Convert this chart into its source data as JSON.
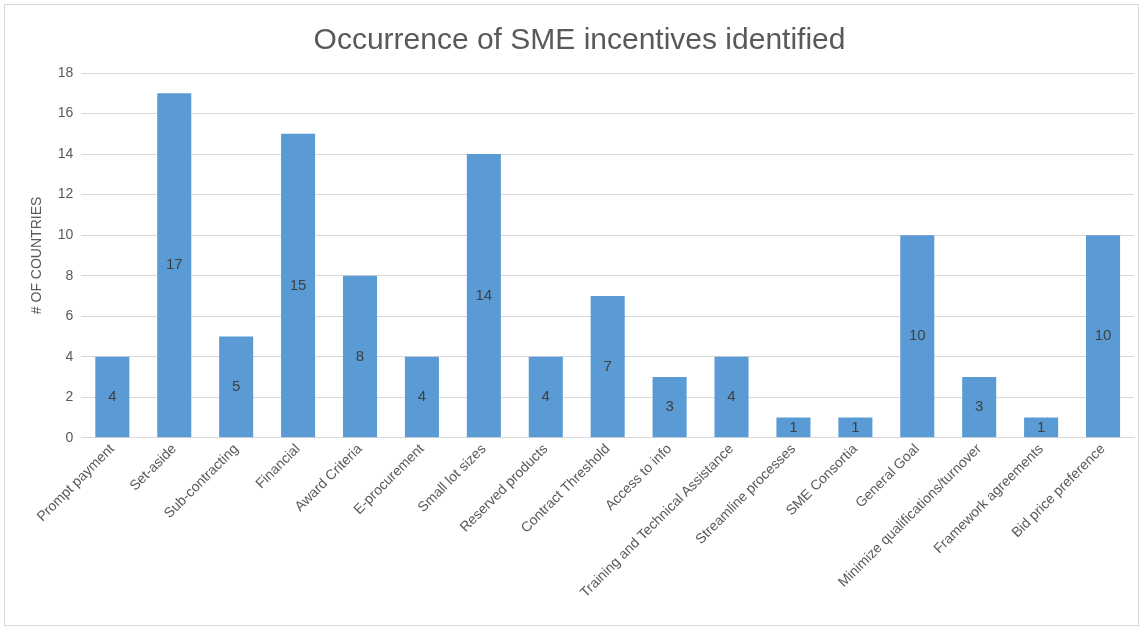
{
  "chart_data": {
    "type": "bar",
    "title": "Occurrence of SME incentives identified",
    "ylabel": "# OF COUNTRIES",
    "categories": [
      "Prompt payment",
      "Set-aside",
      "Sub-contracting",
      "Financial",
      "Award Criteria",
      "E-procurement",
      "Small lot sizes",
      "Reserved products",
      "Contract Threshold",
      "Access to info",
      "Training and Technical Assistance",
      "Streamline processes",
      "SME Consortia",
      "General Goal",
      "Minimize qualifications/turnover",
      "Framework agreements",
      "Bid price preference"
    ],
    "values": [
      4,
      17,
      5,
      15,
      8,
      4,
      14,
      4,
      7,
      3,
      4,
      1,
      1,
      10,
      3,
      1,
      10
    ],
    "color": "#5b9bd5",
    "ylim": [
      0,
      18
    ],
    "yticks": [
      0,
      2,
      4,
      6,
      8,
      10,
      12,
      14,
      16,
      18
    ],
    "grid": "y",
    "data_labels": true,
    "legend": false
  }
}
